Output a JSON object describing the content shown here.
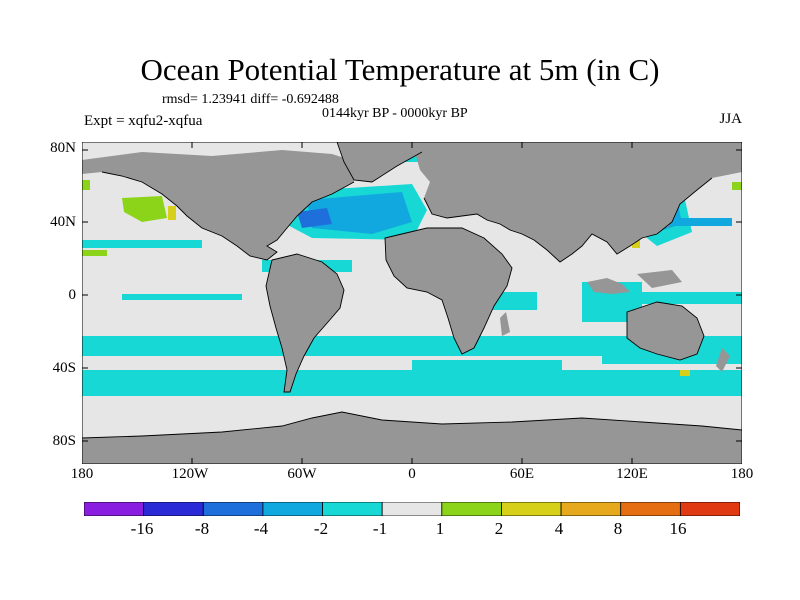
{
  "title": "Ocean Potential Temperature at 5m (in C)",
  "stats_line": "rmsd= 1.23941 diff= -0.692488",
  "period": "0144kyr BP - 0000kyr BP",
  "experiment": "Expt = xqfu2-xqfua",
  "season": "JJA",
  "lat_ticks": [
    "80N",
    "40N",
    "0",
    "40S",
    "80S"
  ],
  "lon_ticks": [
    "180",
    "120W",
    "60W",
    "0",
    "60E",
    "120E",
    "180"
  ],
  "colorbar": {
    "labels": [
      "-16",
      "-8",
      "-4",
      "-2",
      "-1",
      "1",
      "2",
      "4",
      "8",
      "16"
    ],
    "colors": [
      "#8a1ee0",
      "#2a2ad6",
      "#1e6fdc",
      "#11a8e0",
      "#17d8d4",
      "#e6e6e6",
      "#8cd41a",
      "#d6d01a",
      "#e6a81c",
      "#e66e12",
      "#e03a12"
    ]
  },
  "map_colors": {
    "land": "#969696",
    "ocean_neutral": "#e6e6e6",
    "cool_light": "#17d8d4",
    "cool_mid": "#11a8e0",
    "cool_deep": "#1e6fdc",
    "cool_darkest": "#2a2ad6",
    "warm_light": "#8cd41a",
    "warm_mid": "#d6d01a"
  }
}
